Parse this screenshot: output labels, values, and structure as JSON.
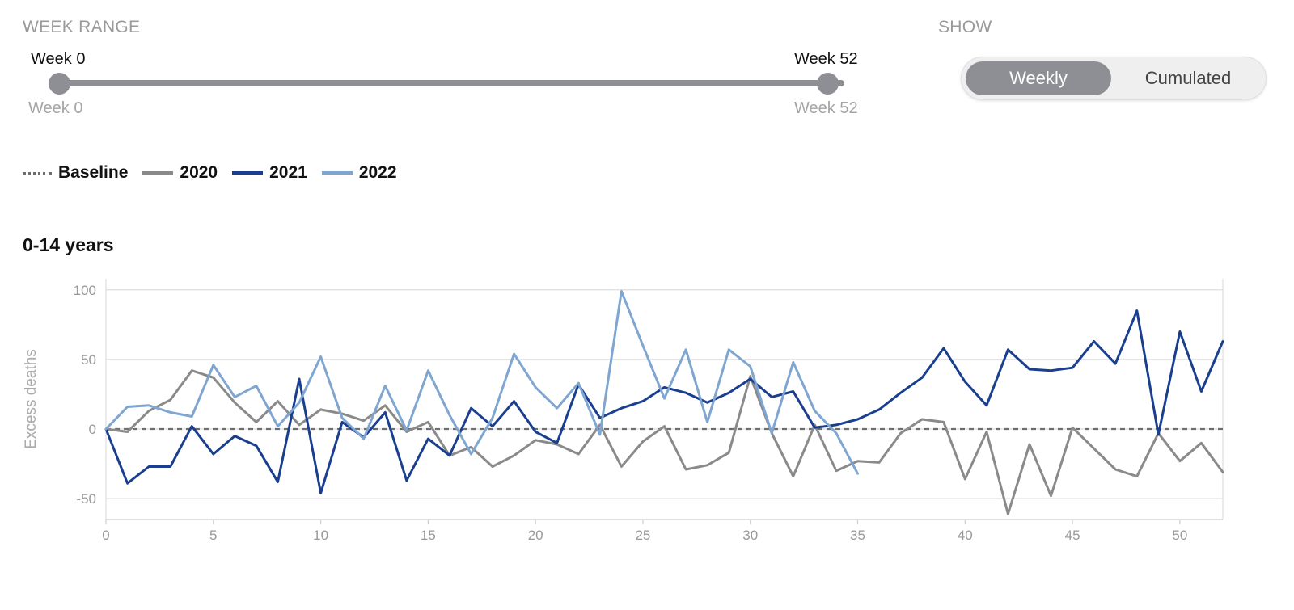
{
  "week_range": {
    "label": "WEEK RANGE",
    "start_value": "Week 0",
    "end_value": "Week 52",
    "min_label": "Week 0",
    "max_label": "Week 52"
  },
  "show": {
    "label": "SHOW",
    "options": [
      "Weekly",
      "Cumulated"
    ],
    "selected": "Weekly"
  },
  "colors": {
    "baseline": "#6e6e6e",
    "2020": "#8a8a8a",
    "2021": "#1a3f8f",
    "2022": "#7fa6d1",
    "slider": "#8e8f94"
  },
  "chart_data": {
    "type": "line",
    "title": "0-14 years",
    "ylabel": "Excess deaths",
    "xlabel": "",
    "xlim": [
      0,
      52
    ],
    "ylim": [
      -65,
      108
    ],
    "xticks": [
      0,
      5,
      10,
      15,
      20,
      25,
      30,
      35,
      40,
      45,
      50
    ],
    "yticks": [
      -50,
      0,
      50,
      100
    ],
    "grid": true,
    "legend_position": "top-left",
    "baseline": {
      "name": "Baseline",
      "value": 0,
      "style": "dashed"
    },
    "series": [
      {
        "name": "2020",
        "x": [
          0,
          1,
          2,
          3,
          4,
          5,
          6,
          7,
          8,
          9,
          10,
          11,
          12,
          13,
          14,
          15,
          16,
          17,
          18,
          19,
          20,
          21,
          22,
          23,
          24,
          25,
          26,
          27,
          28,
          29,
          30,
          31,
          32,
          33,
          34,
          35,
          36,
          37,
          38,
          39,
          40,
          41,
          42,
          43,
          44,
          45,
          46,
          47,
          48,
          49,
          50,
          51,
          52
        ],
        "values": [
          0,
          -2,
          13,
          21,
          42,
          37,
          19,
          5,
          20,
          3,
          14,
          11,
          6,
          17,
          -2,
          5,
          -19,
          -13,
          -27,
          -19,
          -8,
          -11,
          -18,
          3,
          -27,
          -9,
          2,
          -29,
          -26,
          -17,
          38,
          -3,
          -34,
          3,
          -30,
          -23,
          -24,
          -3,
          7,
          5,
          -36,
          -2,
          -61,
          -11,
          -48,
          1,
          -14,
          -29,
          -34,
          -3,
          -23,
          -10,
          -31
        ]
      },
      {
        "name": "2021",
        "x": [
          0,
          1,
          2,
          3,
          4,
          5,
          6,
          7,
          8,
          9,
          10,
          11,
          12,
          13,
          14,
          15,
          16,
          17,
          18,
          19,
          20,
          21,
          22,
          23,
          24,
          25,
          26,
          27,
          28,
          29,
          30,
          31,
          32,
          33,
          34,
          35,
          36,
          37,
          38,
          39,
          40,
          41,
          42,
          43,
          44,
          45,
          46,
          47,
          48,
          49,
          50,
          51,
          52
        ],
        "values": [
          0,
          -39,
          -27,
          -27,
          2,
          -18,
          -5,
          -12,
          -38,
          36,
          -46,
          5,
          -6,
          12,
          -37,
          -7,
          -19,
          15,
          2,
          20,
          -2,
          -10,
          32,
          8,
          15,
          20,
          30,
          26,
          19,
          26,
          36,
          23,
          27,
          1,
          3,
          7,
          14,
          26,
          37,
          58,
          34,
          17,
          57,
          43,
          42,
          44,
          63,
          47,
          85,
          -4,
          70,
          27,
          63
        ]
      },
      {
        "name": "2022",
        "x": [
          0,
          1,
          2,
          3,
          4,
          5,
          6,
          7,
          8,
          9,
          10,
          11,
          12,
          13,
          14,
          15,
          16,
          17,
          18,
          19,
          20,
          21,
          22,
          23,
          24,
          25,
          26,
          27,
          28,
          29,
          30,
          31,
          32,
          33,
          34,
          35
        ],
        "values": [
          0,
          16,
          17,
          12,
          9,
          46,
          23,
          31,
          2,
          19,
          52,
          8,
          -7,
          31,
          -1,
          42,
          10,
          -18,
          8,
          54,
          30,
          15,
          33,
          -4,
          99,
          60,
          22,
          57,
          5,
          57,
          45,
          -3,
          48,
          13,
          -3,
          -32
        ]
      }
    ]
  }
}
